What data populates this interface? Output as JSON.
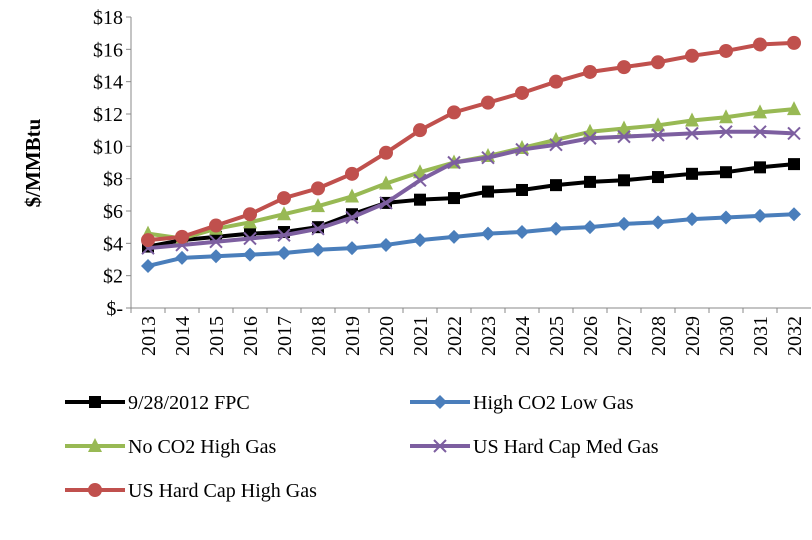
{
  "chart_data": {
    "type": "line",
    "y_label": "$/MMBtu",
    "categories": [
      "2013",
      "2014",
      "2015",
      "2016",
      "2017",
      "2018",
      "2019",
      "2020",
      "2021",
      "2022",
      "2023",
      "2024",
      "2025",
      "2026",
      "2027",
      "2028",
      "2029",
      "2030",
      "2031",
      "2032"
    ],
    "ylim": [
      0,
      18
    ],
    "yticks": [
      {
        "value": 0,
        "label": "$-"
      },
      {
        "value": 2,
        "label": "$2"
      },
      {
        "value": 4,
        "label": "$4"
      },
      {
        "value": 6,
        "label": "$6"
      },
      {
        "value": 8,
        "label": "$8"
      },
      {
        "value": 10,
        "label": "$10"
      },
      {
        "value": 12,
        "label": "$12"
      },
      {
        "value": 14,
        "label": "$14"
      },
      {
        "value": 16,
        "label": "$16"
      },
      {
        "value": 18,
        "label": "$18"
      }
    ],
    "grid": false,
    "series": [
      {
        "name": "9/28/2012 FPC",
        "color": "#000000",
        "marker": "square",
        "values": [
          3.8,
          4.2,
          4.4,
          4.6,
          4.7,
          5.0,
          5.8,
          6.5,
          6.7,
          6.8,
          7.2,
          7.3,
          7.6,
          7.8,
          7.9,
          8.1,
          8.3,
          8.4,
          8.7,
          8.9
        ]
      },
      {
        "name": "High CO2 Low Gas",
        "color": "#4a7ebb",
        "marker": "diamond",
        "values": [
          2.6,
          3.1,
          3.2,
          3.3,
          3.4,
          3.6,
          3.7,
          3.9,
          4.2,
          4.4,
          4.6,
          4.7,
          4.9,
          5.0,
          5.2,
          5.3,
          5.5,
          5.6,
          5.7,
          5.8
        ]
      },
      {
        "name": "No CO2 High Gas",
        "color": "#98b954",
        "marker": "triangle",
        "values": [
          4.6,
          4.3,
          4.9,
          5.3,
          5.8,
          6.3,
          6.9,
          7.7,
          8.4,
          9.0,
          9.4,
          9.9,
          10.4,
          10.9,
          11.1,
          11.3,
          11.6,
          11.8,
          12.1,
          12.3
        ]
      },
      {
        "name": "US Hard Cap Med Gas",
        "color": "#7d5fa0",
        "marker": "x",
        "values": [
          3.7,
          3.9,
          4.1,
          4.3,
          4.5,
          4.9,
          5.6,
          6.5,
          7.9,
          9.0,
          9.3,
          9.8,
          10.1,
          10.5,
          10.6,
          10.7,
          10.8,
          10.9,
          10.9,
          10.8
        ]
      },
      {
        "name": "US Hard Cap High Gas",
        "color": "#c0504d",
        "marker": "circle",
        "values": [
          4.2,
          4.4,
          5.1,
          5.8,
          6.8,
          7.4,
          8.3,
          9.6,
          11.0,
          12.1,
          12.7,
          13.3,
          14.0,
          14.6,
          14.9,
          15.2,
          15.6,
          15.9,
          16.3,
          16.4
        ]
      }
    ]
  }
}
